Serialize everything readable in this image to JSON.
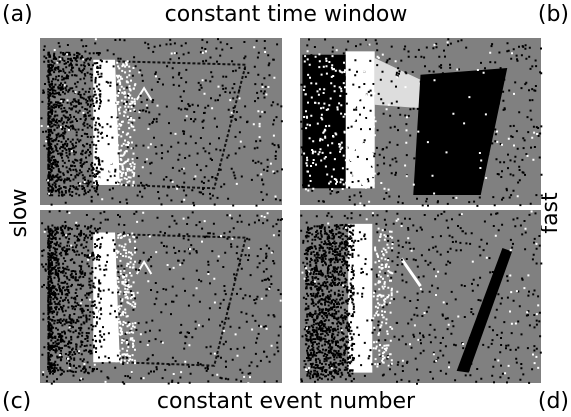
{
  "labels": {
    "a": "(a)",
    "b": "(b)",
    "c": "(c)",
    "d": "(d)"
  },
  "top_title": "constant time window",
  "bottom_title": "constant event number",
  "left_label": "slow",
  "right_label": "fast"
}
